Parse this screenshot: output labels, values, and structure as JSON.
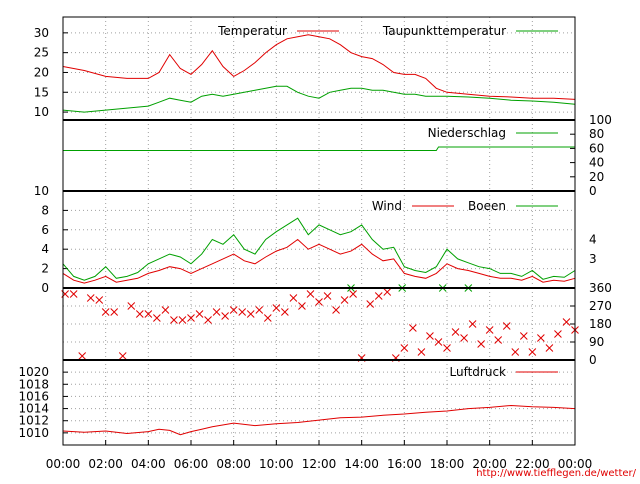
{
  "source_url": "http://www.tiefflegen.de/wetter/",
  "colors": {
    "red": "#e00000",
    "green": "#00a000"
  },
  "time_labels": [
    "00:00",
    "02:00",
    "04:00",
    "06:00",
    "08:00",
    "10:00",
    "12:00",
    "14:00",
    "16:00",
    "18:00",
    "20:00",
    "22:00",
    "00:00"
  ],
  "chart_data": [
    {
      "type": "line",
      "id": "temperature",
      "ylim": [
        8,
        34
      ],
      "yticks": [
        10,
        15,
        20,
        25,
        30
      ],
      "x_hours": [
        0,
        1,
        2,
        3,
        4,
        4.5,
        5,
        5.5,
        6,
        6.5,
        7,
        7.5,
        8,
        8.5,
        9,
        9.5,
        10,
        10.5,
        11,
        11.5,
        12,
        12.5,
        13,
        13.5,
        14,
        14.5,
        15,
        15.5,
        16,
        16.5,
        17,
        17.5,
        18,
        19,
        20,
        21,
        22,
        23,
        24
      ],
      "series": [
        {
          "name": "Temperatur",
          "color": "#e00000",
          "values": [
            21.5,
            20.5,
            19,
            18.5,
            18.5,
            20,
            24.5,
            21,
            19.5,
            22,
            25.5,
            21.5,
            19,
            20.5,
            22.5,
            25,
            27,
            28.5,
            29,
            29.5,
            29,
            28.5,
            27,
            25,
            24,
            23.5,
            22,
            20,
            19.5,
            19.5,
            18.5,
            16,
            15,
            14.5,
            14,
            13.8,
            13.5,
            13.5,
            13.2
          ]
        },
        {
          "name": "Taupunkttemperatur",
          "color": "#00a000",
          "values": [
            10.5,
            10,
            10.5,
            11,
            11.5,
            12.5,
            13.5,
            13,
            12.5,
            14,
            14.5,
            14,
            14.5,
            15,
            15.5,
            16,
            16.5,
            16.5,
            15,
            14,
            13.5,
            15,
            15.5,
            16,
            16,
            15.5,
            15.5,
            15,
            14.5,
            14.5,
            14,
            14,
            14,
            13.8,
            13.5,
            13,
            12.8,
            12.5,
            12
          ]
        }
      ]
    },
    {
      "type": "line",
      "id": "precipitation",
      "ylim": [
        0,
        100
      ],
      "yticks": [
        0,
        20,
        40,
        60,
        80,
        100
      ],
      "x_hours": [
        0,
        17.5,
        17.6,
        24
      ],
      "series": [
        {
          "name": "Niederschlag",
          "color": "#00a000",
          "values": [
            57,
            57,
            62,
            62
          ]
        }
      ]
    },
    {
      "type": "line",
      "id": "wind",
      "ylim": [
        0,
        10
      ],
      "yticks": [
        0,
        2,
        4,
        6,
        8,
        10
      ],
      "right_labels": [
        {
          "text": "4",
          "value": 5
        },
        {
          "text": "3",
          "value": 3
        }
      ],
      "x_hours": [
        0,
        0.5,
        1,
        1.5,
        2,
        2.5,
        3,
        3.5,
        4,
        4.5,
        5,
        5.5,
        6,
        6.5,
        7,
        7.5,
        8,
        8.5,
        9,
        9.5,
        10,
        10.5,
        11,
        11.5,
        12,
        12.5,
        13,
        13.5,
        14,
        14.5,
        15,
        15.5,
        16,
        16.5,
        17,
        17.5,
        18,
        18.5,
        19,
        19.5,
        20,
        20.5,
        21,
        21.5,
        22,
        22.5,
        23,
        23.5,
        24
      ],
      "series": [
        {
          "name": "Wind",
          "color": "#e00000",
          "values": [
            1.5,
            0.8,
            0.5,
            0.8,
            1.2,
            0.6,
            0.8,
            1.0,
            1.5,
            1.8,
            2.2,
            2.0,
            1.5,
            2.0,
            2.5,
            3.0,
            3.5,
            2.8,
            2.5,
            3.2,
            3.8,
            4.2,
            5.0,
            4.0,
            4.5,
            4.0,
            3.5,
            3.8,
            4.5,
            3.5,
            2.8,
            3.0,
            1.5,
            1.2,
            1.0,
            1.5,
            2.5,
            2.0,
            1.8,
            1.5,
            1.2,
            1.0,
            1.0,
            0.8,
            1.2,
            0.6,
            0.8,
            0.7,
            1.0
          ]
        },
        {
          "name": "Boeen",
          "color": "#00a000",
          "values": [
            2.5,
            1.2,
            0.8,
            1.2,
            2.2,
            1.0,
            1.2,
            1.6,
            2.5,
            3.0,
            3.5,
            3.2,
            2.5,
            3.5,
            5.0,
            4.5,
            5.5,
            4.0,
            3.5,
            5.0,
            5.8,
            6.5,
            7.2,
            5.5,
            6.5,
            6.0,
            5.5,
            5.8,
            6.5,
            5.0,
            4.0,
            4.2,
            2.2,
            1.8,
            1.6,
            2.2,
            4.0,
            3.0,
            2.6,
            2.2,
            2.0,
            1.5,
            1.5,
            1.2,
            1.8,
            0.9,
            1.2,
            1.1,
            1.8
          ]
        }
      ]
    },
    {
      "type": "scatter",
      "id": "wind_direction",
      "ylim": [
        0,
        360
      ],
      "yticks_right": [
        0,
        90,
        180,
        270,
        360
      ],
      "series": [
        {
          "name": "direction",
          "color": "#e00000",
          "points": [
            [
              0.1,
              330
            ],
            [
              0.5,
              330
            ],
            [
              0.9,
              20
            ],
            [
              1.3,
              310
            ],
            [
              1.7,
              300
            ],
            [
              2.0,
              240
            ],
            [
              2.4,
              240
            ],
            [
              2.8,
              20
            ],
            [
              3.2,
              270
            ],
            [
              3.6,
              230
            ],
            [
              4.0,
              230
            ],
            [
              4.4,
              210
            ],
            [
              4.8,
              250
            ],
            [
              5.2,
              200
            ],
            [
              5.6,
              200
            ],
            [
              6.0,
              210
            ],
            [
              6.4,
              230
            ],
            [
              6.8,
              200
            ],
            [
              7.2,
              240
            ],
            [
              7.6,
              220
            ],
            [
              8.0,
              250
            ],
            [
              8.4,
              240
            ],
            [
              8.8,
              230
            ],
            [
              9.2,
              250
            ],
            [
              9.6,
              210
            ],
            [
              10.0,
              260
            ],
            [
              10.4,
              240
            ],
            [
              10.8,
              310
            ],
            [
              11.2,
              270
            ],
            [
              11.6,
              330
            ],
            [
              12.0,
              290
            ],
            [
              12.4,
              320
            ],
            [
              12.8,
              250
            ],
            [
              13.2,
              300
            ],
            [
              13.6,
              330
            ],
            [
              14.0,
              10
            ],
            [
              14.4,
              280
            ],
            [
              14.8,
              320
            ],
            [
              15.2,
              340
            ],
            [
              15.6,
              10
            ],
            [
              16.0,
              60
            ],
            [
              16.4,
              160
            ],
            [
              16.8,
              40
            ],
            [
              17.2,
              120
            ],
            [
              17.6,
              90
            ],
            [
              18.0,
              60
            ],
            [
              18.4,
              140
            ],
            [
              18.8,
              110
            ],
            [
              19.2,
              180
            ],
            [
              19.6,
              80
            ],
            [
              20.0,
              150
            ],
            [
              20.4,
              100
            ],
            [
              20.8,
              170
            ],
            [
              21.2,
              40
            ],
            [
              21.6,
              120
            ],
            [
              22.0,
              40
            ],
            [
              22.4,
              110
            ],
            [
              22.8,
              60
            ],
            [
              23.2,
              130
            ],
            [
              23.6,
              190
            ],
            [
              24.0,
              150
            ]
          ]
        },
        {
          "name": "direction_gust",
          "color": "#00a000",
          "points": [
            [
              13.5,
              360
            ],
            [
              15.9,
              360
            ],
            [
              17.8,
              360
            ],
            [
              19.0,
              360
            ]
          ]
        }
      ]
    },
    {
      "type": "line",
      "id": "pressure",
      "ylim": [
        1008,
        1022
      ],
      "yticks": [
        1010,
        1012,
        1014,
        1016,
        1018,
        1020
      ],
      "x_hours": [
        0,
        1,
        2,
        3,
        4,
        4.5,
        5,
        5.5,
        6,
        6.5,
        7,
        8,
        9,
        10,
        11,
        12,
        13,
        14,
        15,
        16,
        17,
        18,
        19,
        20,
        21,
        22,
        23,
        24
      ],
      "series": [
        {
          "name": "Luftdruck",
          "color": "#e00000",
          "values": [
            1010.3,
            1010.1,
            1010.3,
            1009.9,
            1010.2,
            1010.6,
            1010.4,
            1009.7,
            1010.2,
            1010.6,
            1011,
            1011.6,
            1011.2,
            1011.5,
            1011.7,
            1012.1,
            1012.5,
            1012.6,
            1012.9,
            1013.1,
            1013.4,
            1013.6,
            1014,
            1014.2,
            1014.5,
            1014.3,
            1014.2,
            1014.0
          ]
        }
      ]
    }
  ]
}
